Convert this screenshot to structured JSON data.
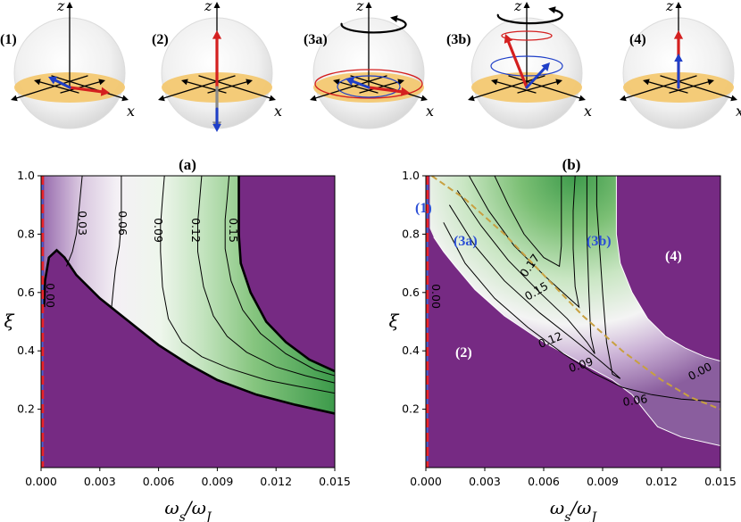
{
  "colors": {
    "purple": "#762a83",
    "white": "#f7f7f7",
    "green": "#1b7837",
    "red_dash": "#e8242b",
    "blue_line": "#4a5fd0",
    "gold_dash": "#c8a040",
    "arrow_red": "#d42020",
    "arrow_blue": "#1f3fc8",
    "arrow_gray": "#8a8a8a",
    "disk": "#f4c66a"
  },
  "spheres": [
    {
      "label": "(1)",
      "x_axis_label": "x",
      "z_axis_label": "z"
    },
    {
      "label": "(2)",
      "x_axis_label": "x",
      "z_axis_label": "z"
    },
    {
      "label": "(3a)",
      "x_axis_label": "x",
      "z_axis_label": "z"
    },
    {
      "label": "(3b)",
      "x_axis_label": "x",
      "z_axis_label": "z"
    },
    {
      "label": "(4)",
      "x_axis_label": "x",
      "z_axis_label": "z"
    }
  ],
  "chart_data": [
    {
      "type": "heatmap",
      "title": "(a)",
      "xlabel": "ω_s/ω_J",
      "ylabel": "ξ",
      "xlim": [
        0.0,
        0.015
      ],
      "ylim": [
        0.0,
        1.0
      ],
      "xticks": [
        0.0,
        0.003,
        0.006,
        0.009,
        0.012,
        0.015
      ],
      "xtick_labels": [
        "0.000",
        "0.003",
        "0.006",
        "0.009",
        "0.012",
        "0.015"
      ],
      "yticks": [
        0.2,
        0.4,
        0.6,
        0.8,
        1.0
      ],
      "ytick_labels": [
        "0.2",
        "0.4",
        "0.6",
        "0.8",
        "1.0"
      ],
      "colormap": "PRGn",
      "contours": [
        {
          "level": 0.0,
          "label": "0.00",
          "points": [
            [
              0.00015,
              0.55
            ],
            [
              0.0002,
              0.64
            ],
            [
              0.0004,
              0.72
            ],
            [
              0.0008,
              0.745
            ],
            [
              0.0012,
              0.72
            ],
            [
              0.0018,
              0.66
            ],
            [
              0.003,
              0.58
            ],
            [
              0.0045,
              0.5
            ],
            [
              0.006,
              0.42
            ],
            [
              0.0075,
              0.355
            ],
            [
              0.009,
              0.3
            ],
            [
              0.011,
              0.25
            ],
            [
              0.013,
              0.215
            ],
            [
              0.015,
              0.185
            ]
          ]
        },
        {
          "level": 0.03,
          "label": "0.03",
          "points": [
            [
              0.0021,
              1.0
            ],
            [
              0.002,
              0.93
            ],
            [
              0.0019,
              0.86
            ],
            [
              0.0018,
              0.8
            ],
            [
              0.0016,
              0.74
            ],
            [
              0.0013,
              0.69
            ]
          ]
        },
        {
          "level": 0.06,
          "label": "0.06",
          "points": [
            [
              0.0041,
              1.0
            ],
            [
              0.0041,
              0.92
            ],
            [
              0.0041,
              0.84
            ],
            [
              0.004,
              0.76
            ],
            [
              0.0038,
              0.68
            ],
            [
              0.0037,
              0.62
            ],
            [
              0.0036,
              0.55
            ]
          ]
        },
        {
          "level": 0.09,
          "label": "0.09",
          "points": [
            [
              0.0063,
              1.0
            ],
            [
              0.0062,
              0.92
            ],
            [
              0.0061,
              0.83
            ],
            [
              0.0061,
              0.74
            ],
            [
              0.0062,
              0.62
            ],
            [
              0.0065,
              0.51
            ],
            [
              0.0072,
              0.43
            ],
            [
              0.0082,
              0.38
            ],
            [
              0.0096,
              0.34
            ],
            [
              0.0115,
              0.3
            ],
            [
              0.013,
              0.28
            ],
            [
              0.015,
              0.255
            ]
          ]
        },
        {
          "level": 0.12,
          "label": "0.12",
          "points": [
            [
              0.0082,
              1.0
            ],
            [
              0.0081,
              0.92
            ],
            [
              0.008,
              0.84
            ],
            [
              0.008,
              0.74
            ],
            [
              0.0083,
              0.62
            ],
            [
              0.0088,
              0.52
            ],
            [
              0.0095,
              0.45
            ],
            [
              0.0105,
              0.395
            ],
            [
              0.012,
              0.345
            ],
            [
              0.0135,
              0.315
            ],
            [
              0.015,
              0.29
            ]
          ]
        },
        {
          "level": 0.15,
          "label": "0.15",
          "points": [
            [
              0.0096,
              1.0
            ],
            [
              0.0095,
              0.92
            ],
            [
              0.0094,
              0.85
            ],
            [
              0.0094,
              0.75
            ],
            [
              0.0097,
              0.64
            ],
            [
              0.0103,
              0.54
            ],
            [
              0.0112,
              0.46
            ],
            [
              0.0125,
              0.39
            ],
            [
              0.014,
              0.335
            ],
            [
              0.015,
              0.315
            ]
          ]
        },
        {
          "level": "boundary",
          "label": "",
          "points": [
            [
              0.0101,
              1.0
            ],
            [
              0.0101,
              0.9
            ],
            [
              0.0101,
              0.8
            ],
            [
              0.0102,
              0.7
            ],
            [
              0.0107,
              0.6
            ],
            [
              0.0115,
              0.5
            ],
            [
              0.0125,
              0.43
            ],
            [
              0.0137,
              0.37
            ],
            [
              0.015,
              0.33
            ]
          ]
        }
      ]
    },
    {
      "type": "heatmap",
      "title": "(b)",
      "xlabel": "ω_s/ω_J",
      "ylabel": "ξ",
      "xlim": [
        0.0,
        0.015
      ],
      "ylim": [
        0.0,
        1.0
      ],
      "xticks": [
        0.0,
        0.003,
        0.006,
        0.009,
        0.012,
        0.015
      ],
      "xtick_labels": [
        "0.000",
        "0.003",
        "0.006",
        "0.009",
        "0.012",
        "0.015"
      ],
      "yticks": [
        0.2,
        0.4,
        0.6,
        0.8,
        1.0
      ],
      "ytick_labels": [
        "0.2",
        "0.4",
        "0.6",
        "0.8",
        "1.0"
      ],
      "colormap": "PRGn",
      "contours": [
        {
          "level": 0.0,
          "label": "0.00",
          "points": [
            [
              0.0004,
              0.79
            ],
            [
              0.0009,
              0.74
            ],
            [
              0.0015,
              0.69
            ],
            [
              0.0025,
              0.61
            ],
            [
              0.004,
              0.52
            ],
            [
              0.006,
              0.43
            ],
            [
              0.008,
              0.355
            ],
            [
              0.0095,
              0.3
            ],
            [
              0.0105,
              0.25
            ],
            [
              0.0112,
              0.19
            ],
            [
              0.0118,
              0.14
            ],
            [
              0.013,
              0.105
            ],
            [
              0.015,
              0.075
            ]
          ]
        },
        {
          "level": "0.00r",
          "label": "0.00",
          "points": [
            [
              0.0097,
              1.0
            ],
            [
              0.0097,
              0.9
            ],
            [
              0.0097,
              0.8
            ],
            [
              0.0099,
              0.7
            ],
            [
              0.0105,
              0.6
            ],
            [
              0.0113,
              0.51
            ],
            [
              0.0122,
              0.45
            ],
            [
              0.0132,
              0.41
            ],
            [
              0.0142,
              0.38
            ],
            [
              0.015,
              0.365
            ]
          ]
        },
        {
          "level": 0.06,
          "label": "0.06",
          "points": [
            [
              0.0009,
              0.84
            ],
            [
              0.002,
              0.7
            ],
            [
              0.0035,
              0.58
            ],
            [
              0.0052,
              0.48
            ],
            [
              0.007,
              0.39
            ],
            [
              0.0085,
              0.325
            ],
            [
              0.01,
              0.275
            ],
            [
              0.0115,
              0.25
            ],
            [
              0.013,
              0.235
            ],
            [
              0.015,
              0.225
            ]
          ]
        },
        {
          "level": 0.09,
          "label": "0.09",
          "points": [
            [
              0.0012,
              0.9
            ],
            [
              0.0025,
              0.76
            ],
            [
              0.004,
              0.64
            ],
            [
              0.0058,
              0.53
            ],
            [
              0.0075,
              0.44
            ],
            [
              0.0088,
              0.37
            ],
            [
              0.0095,
              0.33
            ],
            [
              0.0099,
              0.305
            ],
            [
              0.0095,
              0.32
            ],
            [
              0.0092,
              0.43
            ],
            [
              0.009,
              0.6
            ],
            [
              0.0088,
              0.8
            ],
            [
              0.0087,
              0.9
            ],
            [
              0.0087,
              1.0
            ]
          ]
        },
        {
          "level": 0.12,
          "label": "0.12",
          "points": [
            [
              0.0016,
              0.95
            ],
            [
              0.0028,
              0.83
            ],
            [
              0.0042,
              0.71
            ],
            [
              0.0058,
              0.6
            ],
            [
              0.0072,
              0.51
            ],
            [
              0.0082,
              0.43
            ],
            [
              0.0086,
              0.39
            ],
            [
              0.0084,
              0.45
            ],
            [
              0.0083,
              0.6
            ],
            [
              0.0082,
              0.8
            ],
            [
              0.0082,
              1.0
            ]
          ]
        },
        {
          "level": 0.15,
          "label": "0.15",
          "points": [
            [
              0.0022,
              1.0
            ],
            [
              0.0032,
              0.88
            ],
            [
              0.0045,
              0.76
            ],
            [
              0.006,
              0.66
            ],
            [
              0.0073,
              0.58
            ],
            [
              0.0078,
              0.55
            ],
            [
              0.0076,
              0.62
            ],
            [
              0.0075,
              0.75
            ],
            [
              0.0075,
              0.88
            ],
            [
              0.0076,
              1.0
            ]
          ]
        },
        {
          "level": 0.17,
          "label": "0.17",
          "points": [
            [
              0.0035,
              1.0
            ],
            [
              0.0042,
              0.9
            ],
            [
              0.005,
              0.8
            ],
            [
              0.006,
              0.72
            ],
            [
              0.0068,
              0.69
            ],
            [
              0.0069,
              0.76
            ],
            [
              0.0069,
              0.88
            ],
            [
              0.0069,
              1.0
            ]
          ]
        }
      ],
      "separatrix": [
        [
          0.0003,
          1.0
        ],
        [
          0.002,
          0.92
        ],
        [
          0.004,
          0.8
        ],
        [
          0.006,
          0.66
        ],
        [
          0.008,
          0.52
        ],
        [
          0.01,
          0.4
        ],
        [
          0.012,
          0.3
        ],
        [
          0.0135,
          0.24
        ],
        [
          0.015,
          0.2
        ]
      ],
      "region_labels": [
        "(1)",
        "(2)",
        "(3a)",
        "(3b)",
        "(4)"
      ]
    }
  ]
}
